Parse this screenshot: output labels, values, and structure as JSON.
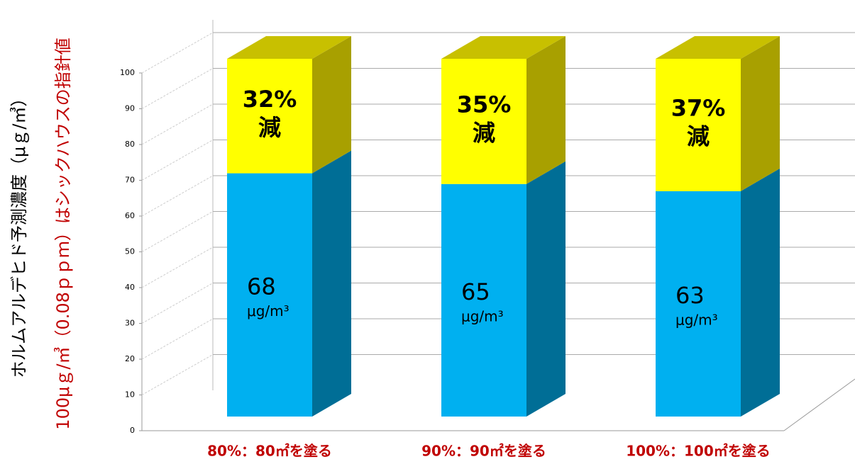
{
  "chart_data": {
    "type": "bar3d_stacked",
    "y_title": "ホルムアルデヒド予測濃度（μｇ/㎥）",
    "y_subtitle": "100μｇ/㎥（0.08ｐｐｍ）はシックハウスの指針値",
    "categories": [
      "80%：80㎡を塗る",
      "90%：90㎡を塗る",
      "100%：100㎡を塗る"
    ],
    "series": [
      {
        "color": "#00b0f0",
        "side_color": "#006e96",
        "values": [
          68,
          65,
          63
        ]
      },
      {
        "color": "#ffff00",
        "side_color": "#a8a000",
        "top_color": "#c8c000",
        "values": [
          32,
          35,
          37
        ],
        "value_labels": [
          "32%",
          "35%",
          "37%"
        ]
      }
    ],
    "unit_label": "μg/m³",
    "reduction_label": "減",
    "ylim": [
      0,
      100
    ],
    "yticks": [
      0,
      10,
      20,
      30,
      40,
      50,
      60,
      70,
      80,
      90,
      100
    ],
    "grid": true
  }
}
